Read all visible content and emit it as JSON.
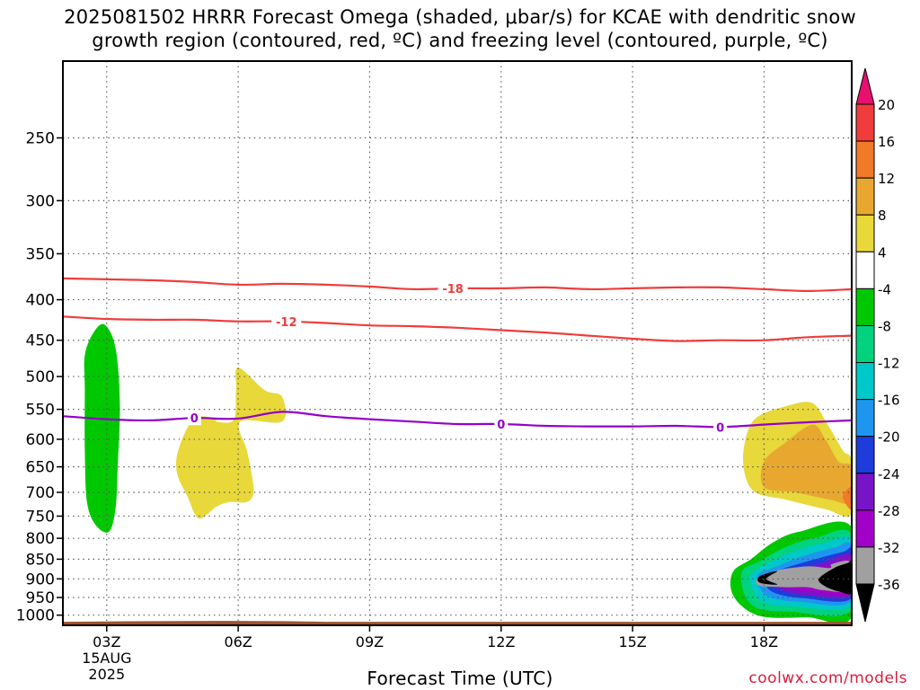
{
  "title": {
    "line1": "2025081502 HRRR Forecast Omega (shaded, μbar/s) for KCAE with dendritic snow",
    "line2": "growth region (contoured, red, ºC) and freezing level (contoured, purple, ºC)"
  },
  "footer": {
    "xlabel": "Forecast Time (UTC)",
    "credit": "coolwx.com/models"
  },
  "chart_data": {
    "type": "heatmap",
    "title": "2025081502 HRRR Forecast Omega (shaded, μbar/s) for KCAE with dendritic snow growth region (contoured, red, ºC) and freezing level (contoured, purple, ºC)",
    "xlabel": "Forecast Time (UTC)",
    "ylabel": "",
    "xlim": [
      2,
      20
    ],
    "ylim": [
      1030,
      200
    ],
    "yscale": "log",
    "grid": true,
    "x_ticks": [
      {
        "x": 3,
        "label": "03Z",
        "extra": [
          "15AUG",
          "2025"
        ]
      },
      {
        "x": 6,
        "label": "06Z"
      },
      {
        "x": 9,
        "label": "09Z"
      },
      {
        "x": 12,
        "label": "12Z"
      },
      {
        "x": 15,
        "label": "15Z"
      },
      {
        "x": 18,
        "label": "18Z"
      }
    ],
    "y_ticks": [
      250,
      300,
      350,
      400,
      450,
      500,
      550,
      600,
      650,
      700,
      750,
      800,
      850,
      900,
      950,
      1000
    ],
    "colorbar": {
      "labels": [
        "20",
        "16",
        "12",
        "8",
        "4",
        "-4",
        "-8",
        "-12",
        "-16",
        "-20",
        "-24",
        "-28",
        "-32",
        "-36"
      ],
      "colors": [
        "#e8106e",
        "#f03c3c",
        "#f07a28",
        "#e8a830",
        "#e8d83a",
        "#ffffff",
        "#00c800",
        "#00d27e",
        "#00c8c8",
        "#1e96f0",
        "#1e3cdc",
        "#7814c8",
        "#a000c8",
        "#a0a0a0",
        "#000000"
      ]
    },
    "contours": [
      {
        "name": "-18",
        "color": "#f03c3c",
        "label_x": 10.9,
        "points": [
          [
            2,
            376
          ],
          [
            3,
            377
          ],
          [
            4,
            378
          ],
          [
            5,
            380
          ],
          [
            6,
            383
          ],
          [
            7,
            382
          ],
          [
            8,
            383
          ],
          [
            9,
            385
          ],
          [
            10,
            388
          ],
          [
            11,
            387
          ],
          [
            12,
            387
          ],
          [
            13,
            386
          ],
          [
            14,
            388
          ],
          [
            15,
            387
          ],
          [
            16,
            386
          ],
          [
            17,
            386
          ],
          [
            18,
            388
          ],
          [
            19,
            390
          ],
          [
            20,
            388
          ]
        ]
      },
      {
        "name": "-12",
        "color": "#f03c3c",
        "label_x": 7.1,
        "points": [
          [
            2,
            420
          ],
          [
            3,
            423
          ],
          [
            4,
            424
          ],
          [
            5,
            424
          ],
          [
            6,
            426
          ],
          [
            7,
            426
          ],
          [
            8,
            428
          ],
          [
            9,
            431
          ],
          [
            10,
            432
          ],
          [
            11,
            434
          ],
          [
            12,
            437
          ],
          [
            13,
            440
          ],
          [
            14,
            444
          ],
          [
            15,
            448
          ],
          [
            16,
            451
          ],
          [
            17,
            450
          ],
          [
            18,
            450
          ],
          [
            19,
            446
          ],
          [
            20,
            444
          ]
        ]
      },
      {
        "name": "0",
        "color": "#9400c8",
        "label_x": [
          5,
          12,
          17
        ],
        "points": [
          [
            2,
            561
          ],
          [
            3,
            566
          ],
          [
            4,
            568
          ],
          [
            5,
            564
          ],
          [
            6,
            565
          ],
          [
            7,
            554
          ],
          [
            8,
            561
          ],
          [
            9,
            566
          ],
          [
            10,
            570
          ],
          [
            11,
            574
          ],
          [
            12,
            574
          ],
          [
            13,
            577
          ],
          [
            14,
            578
          ],
          [
            15,
            578
          ],
          [
            16,
            577
          ],
          [
            17,
            579
          ],
          [
            18,
            575
          ],
          [
            19,
            571
          ],
          [
            20,
            568
          ]
        ]
      }
    ],
    "omega_regions": [
      {
        "value": "-4 to -8",
        "color": "#00c800",
        "points": [
          [
            2.5,
            470
          ],
          [
            2.7,
            440
          ],
          [
            2.95,
            430
          ],
          [
            3.2,
            460
          ],
          [
            3.3,
            540
          ],
          [
            3.25,
            650
          ],
          [
            3.2,
            735
          ],
          [
            3.05,
            785
          ],
          [
            2.75,
            770
          ],
          [
            2.55,
            720
          ],
          [
            2.5,
            620
          ],
          [
            2.5,
            520
          ]
        ]
      },
      {
        "value": "4 to 8",
        "color": "#e8d83a",
        "points": [
          [
            5.0,
            565
          ],
          [
            5.5,
            565
          ],
          [
            5.5,
            570
          ],
          [
            5.9,
            567
          ],
          [
            5.95,
            520
          ],
          [
            6.0,
            487
          ],
          [
            6.6,
            520
          ],
          [
            7.0,
            530
          ],
          [
            7.0,
            570
          ],
          [
            6.05,
            570
          ],
          [
            6.2,
            620
          ],
          [
            6.3,
            660
          ],
          [
            6.35,
            700
          ],
          [
            6.2,
            720
          ],
          [
            5.8,
            720
          ],
          [
            5.5,
            730
          ],
          [
            5.1,
            755
          ],
          [
            4.85,
            710
          ],
          [
            4.6,
            660
          ],
          [
            4.65,
            615
          ]
        ]
      },
      {
        "value": "4 to 8",
        "color": "#e8d83a",
        "points": [
          [
            17.55,
            610
          ],
          [
            17.8,
            565
          ],
          [
            18.5,
            545
          ],
          [
            19.1,
            540
          ],
          [
            19.45,
            575
          ],
          [
            19.8,
            620
          ],
          [
            20,
            640
          ],
          [
            20,
            745
          ],
          [
            19.4,
            735
          ],
          [
            18.5,
            715
          ],
          [
            17.8,
            700
          ],
          [
            17.55,
            660
          ]
        ]
      },
      {
        "value": "8 to 12",
        "color": "#e8a830",
        "points": [
          [
            18.0,
            640
          ],
          [
            18.5,
            605
          ],
          [
            19.1,
            575
          ],
          [
            19.4,
            600
          ],
          [
            19.7,
            640
          ],
          [
            20,
            650
          ],
          [
            20,
            720
          ],
          [
            19.5,
            715
          ],
          [
            18.7,
            700
          ],
          [
            18.0,
            690
          ]
        ]
      },
      {
        "value": "12 to 16",
        "color": "#f07a28",
        "points": [
          [
            19.8,
            705
          ],
          [
            20,
            690
          ],
          [
            20,
            735
          ],
          [
            19.85,
            722
          ]
        ]
      },
      {
        "value": "-4 to -8",
        "color": "#00c800",
        "points": [
          [
            17.3,
            880
          ],
          [
            17.7,
            850
          ],
          [
            18.2,
            810
          ],
          [
            18.8,
            785
          ],
          [
            20,
            775
          ],
          [
            20,
            1005
          ],
          [
            19.0,
            1007
          ],
          [
            18.0,
            1005
          ],
          [
            17.5,
            975
          ],
          [
            17.25,
            930
          ]
        ]
      },
      {
        "value": "-8 to -12",
        "color": "#00d27e",
        "points": [
          [
            17.5,
            880
          ],
          [
            17.9,
            855
          ],
          [
            18.5,
            820
          ],
          [
            19.2,
            798
          ],
          [
            20,
            792
          ],
          [
            20,
            985
          ],
          [
            18.6,
            990
          ],
          [
            17.85,
            980
          ],
          [
            17.55,
            940
          ]
        ]
      },
      {
        "value": "-12 to -16",
        "color": "#00c8c8",
        "points": [
          [
            17.7,
            890
          ],
          [
            18.1,
            860
          ],
          [
            18.7,
            830
          ],
          [
            19.4,
            810
          ],
          [
            20,
            805
          ],
          [
            20,
            970
          ],
          [
            18.7,
            975
          ],
          [
            18.0,
            965
          ],
          [
            17.75,
            930
          ]
        ]
      },
      {
        "value": "-16 to -20",
        "color": "#1e96f0",
        "points": [
          [
            17.85,
            890
          ],
          [
            18.25,
            870
          ],
          [
            18.9,
            842
          ],
          [
            19.6,
            822
          ],
          [
            20,
            818
          ],
          [
            20,
            960
          ],
          [
            18.8,
            962
          ],
          [
            18.15,
            950
          ],
          [
            17.9,
            925
          ]
        ]
      },
      {
        "value": "-20 to -24",
        "color": "#1e3cdc",
        "points": [
          [
            18.0,
            895
          ],
          [
            18.4,
            875
          ],
          [
            19.1,
            852
          ],
          [
            19.8,
            832
          ],
          [
            20,
            830
          ],
          [
            20,
            952
          ],
          [
            18.9,
            952
          ],
          [
            18.3,
            940
          ],
          [
            18.05,
            920
          ]
        ]
      },
      {
        "value": "-24 to -28",
        "color": "#7814c8",
        "points": [
          [
            18.15,
            895
          ],
          [
            18.55,
            880
          ],
          [
            19.3,
            860
          ],
          [
            20,
            840
          ],
          [
            20,
            944
          ],
          [
            19.0,
            944
          ],
          [
            18.45,
            932
          ],
          [
            18.2,
            915
          ]
        ]
      },
      {
        "value": "-28 to -32",
        "color": "#a000c8",
        "points": [
          [
            18.3,
            895
          ],
          [
            18.7,
            883
          ],
          [
            19.4,
            868
          ],
          [
            20,
            850
          ],
          [
            20,
            938
          ],
          [
            19.1,
            936
          ],
          [
            18.6,
            926
          ],
          [
            18.35,
            912
          ]
        ]
      },
      {
        "value": "-32 to -36",
        "color": "#a0a0a0",
        "points": [
          [
            17.85,
            900
          ],
          [
            18.3,
            878
          ],
          [
            19.0,
            868
          ],
          [
            19.5,
            872
          ],
          [
            19.55,
            862
          ],
          [
            20,
            858
          ],
          [
            20,
            930
          ],
          [
            19.35,
            930
          ],
          [
            19.0,
            922
          ],
          [
            18.5,
            922
          ],
          [
            17.9,
            918
          ]
        ]
      },
      {
        "value": "< -36",
        "color": "#000000",
        "points": [
          [
            17.9,
            893
          ],
          [
            18.3,
            880
          ],
          [
            18.05,
            900
          ],
          [
            18.3,
            915
          ],
          [
            17.9,
            910
          ]
        ]
      },
      {
        "value": "< -36",
        "color": "#000000",
        "points": [
          [
            19.25,
            900
          ],
          [
            19.6,
            872
          ],
          [
            19.9,
            860
          ],
          [
            20,
            858
          ],
          [
            20,
            935
          ],
          [
            19.75,
            935
          ],
          [
            19.4,
            920
          ]
        ]
      }
    ],
    "terrain": {
      "color": "#a0522d",
      "top_hpa": 1017
    }
  }
}
